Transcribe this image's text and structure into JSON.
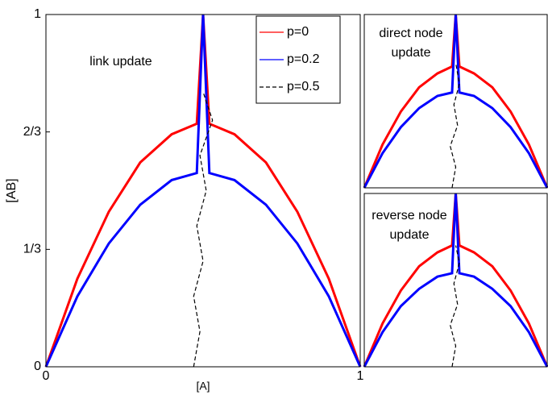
{
  "chart_data": [
    {
      "type": "line",
      "annotation": [
        "link update"
      ],
      "xlabel": "[A]",
      "ylabel": "[AB]",
      "xlim": [
        0,
        1
      ],
      "ylim": [
        0,
        1
      ],
      "xticks": [
        0,
        1
      ],
      "yticks": [
        0,
        {
          "value": 0.3333,
          "label": "1/3"
        },
        {
          "value": 0.6667,
          "label": "2/3"
        },
        1
      ],
      "legend": "upper right",
      "series": [
        {
          "name": "p=0",
          "color": "#ff0000",
          "linestyle": "solid",
          "x": [
            0,
            0.1,
            0.2,
            0.3,
            0.4,
            0.48,
            0.5,
            0.52,
            0.6,
            0.7,
            0.8,
            0.9,
            1
          ],
          "values": [
            0,
            0.25,
            0.44,
            0.58,
            0.66,
            0.69,
            1,
            0.69,
            0.66,
            0.58,
            0.44,
            0.25,
            0
          ]
        },
        {
          "name": "p=0.2",
          "color": "#0000ff",
          "linestyle": "solid",
          "x": [
            0,
            0.1,
            0.2,
            0.3,
            0.4,
            0.48,
            0.5,
            0.52,
            0.6,
            0.7,
            0.8,
            0.9,
            1
          ],
          "values": [
            0,
            0.2,
            0.35,
            0.46,
            0.53,
            0.55,
            1,
            0.55,
            0.53,
            0.46,
            0.35,
            0.2,
            0
          ]
        },
        {
          "name": "p=0.5",
          "color": "#000000",
          "linestyle": "dashed",
          "x": [
            0.47,
            0.49,
            0.47,
            0.5,
            0.48,
            0.51,
            0.49,
            0.53,
            0.5
          ],
          "values": [
            0,
            0.1,
            0.2,
            0.3,
            0.4,
            0.5,
            0.6,
            0.7,
            0.78
          ]
        }
      ]
    },
    {
      "type": "line",
      "annotation": [
        "direct node",
        "update"
      ],
      "xlim": [
        0,
        1
      ],
      "ylim": [
        0,
        1
      ],
      "series": [
        {
          "color": "#ff0000",
          "linestyle": "solid",
          "x": [
            0,
            0.1,
            0.2,
            0.3,
            0.4,
            0.48,
            0.5,
            0.52,
            0.6,
            0.7,
            0.8,
            0.9,
            1
          ],
          "values": [
            0,
            0.25,
            0.44,
            0.58,
            0.66,
            0.7,
            1,
            0.7,
            0.66,
            0.58,
            0.44,
            0.25,
            0
          ]
        },
        {
          "color": "#0000ff",
          "linestyle": "solid",
          "x": [
            0,
            0.1,
            0.2,
            0.3,
            0.4,
            0.48,
            0.5,
            0.52,
            0.6,
            0.7,
            0.8,
            0.9,
            1
          ],
          "values": [
            0,
            0.2,
            0.35,
            0.46,
            0.53,
            0.55,
            1,
            0.55,
            0.53,
            0.46,
            0.35,
            0.2,
            0
          ]
        },
        {
          "color": "#000000",
          "linestyle": "dashed",
          "x": [
            0.48,
            0.5,
            0.47,
            0.51,
            0.49,
            0.52,
            0.5
          ],
          "values": [
            0,
            0.12,
            0.24,
            0.36,
            0.48,
            0.6,
            0.72
          ]
        }
      ]
    },
    {
      "type": "line",
      "annotation": [
        "reverse node",
        "update"
      ],
      "xlim": [
        0,
        1
      ],
      "ylim": [
        0,
        1
      ],
      "series": [
        {
          "color": "#ff0000",
          "linestyle": "solid",
          "x": [
            0,
            0.1,
            0.2,
            0.3,
            0.4,
            0.48,
            0.5,
            0.52,
            0.6,
            0.7,
            0.8,
            0.9,
            1
          ],
          "values": [
            0,
            0.25,
            0.44,
            0.58,
            0.66,
            0.7,
            1,
            0.7,
            0.66,
            0.58,
            0.44,
            0.25,
            0
          ]
        },
        {
          "color": "#0000ff",
          "linestyle": "solid",
          "x": [
            0,
            0.1,
            0.2,
            0.3,
            0.4,
            0.48,
            0.5,
            0.52,
            0.6,
            0.7,
            0.8,
            0.9,
            1
          ],
          "values": [
            0,
            0.2,
            0.35,
            0.45,
            0.52,
            0.54,
            1,
            0.54,
            0.52,
            0.45,
            0.35,
            0.2,
            0
          ]
        },
        {
          "color": "#000000",
          "linestyle": "dashed",
          "x": [
            0.48,
            0.5,
            0.47,
            0.51,
            0.49,
            0.52,
            0.5
          ],
          "values": [
            0,
            0.12,
            0.24,
            0.36,
            0.48,
            0.6,
            0.7
          ]
        }
      ]
    }
  ]
}
